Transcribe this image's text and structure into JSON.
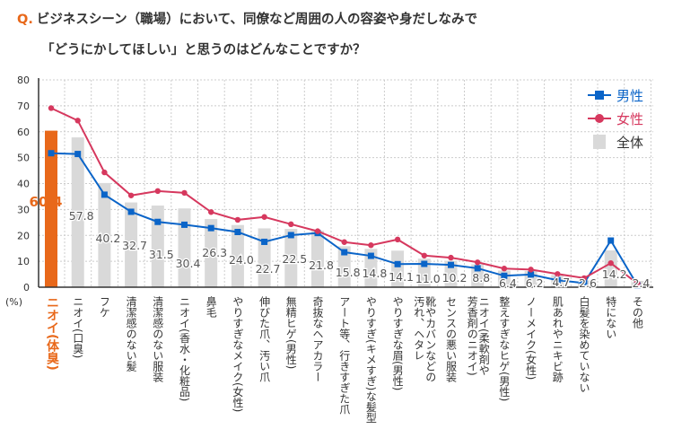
{
  "title": {
    "q_mark": "Q.",
    "line1": "ビジネスシーン（職場）において、同僚など周囲の人の容姿や身だしなみで",
    "line2": "「どうにかしてほしい」と思うのはどんなことですか？"
  },
  "chart_data": {
    "type": "bar",
    "unit_label": "(%)",
    "ylim": [
      0,
      80
    ],
    "yticks": [
      "0",
      "10",
      "20",
      "30",
      "40",
      "50",
      "60",
      "70",
      "80"
    ],
    "grid": true,
    "legend_position": "top-right",
    "categories": [
      "ニオイ(体臭)",
      "ニオイ(口臭)",
      "フケ",
      "清潔感のない髪",
      "清潔感のない服装",
      "ニオイ(香水・化粧品)",
      "鼻毛",
      "やりすぎなメイク(女性)",
      "伸びた爪、汚い爪",
      "無精ヒゲ(男性)",
      "奇抜なヘアカラー",
      "アート等、行きすぎた爪",
      "やりすぎ(キメすぎ)な髪型",
      "やりすぎな眉(男性)",
      "靴やカバンなどの\n汚れ、ヘタレ",
      "センスの悪い服装",
      "ニオイ(柔軟剤や\n芳香剤のニオイ)",
      "整えすぎなヒゲ(男性)",
      "ノーメイク(女性)",
      "肌あれやニキビ跡",
      "白髪を染めていない",
      "特にない",
      "その他"
    ],
    "highlight_index": 0,
    "series": [
      {
        "name": "全体",
        "type": "bar",
        "color": "#d9d9d9",
        "highlight_color": "#e8681a",
        "values": [
          60.4,
          57.8,
          40.2,
          32.7,
          31.5,
          30.4,
          26.3,
          24.0,
          22.7,
          22.5,
          21.8,
          15.8,
          14.8,
          14.1,
          11.0,
          10.2,
          8.8,
          6.4,
          6.2,
          4.7,
          2.6,
          14.2,
          2.4
        ]
      },
      {
        "name": "男性",
        "type": "line",
        "marker": "square",
        "color": "#0a64c8",
        "values": [
          51.7,
          51.4,
          35.7,
          29.1,
          25.2,
          24.1,
          22.8,
          21.3,
          17.5,
          20.1,
          20.9,
          13.5,
          12.1,
          8.9,
          9.0,
          8.6,
          7.3,
          4.4,
          4.9,
          2.7,
          1.6,
          18.0,
          0.7
        ]
      },
      {
        "name": "女性",
        "type": "line",
        "marker": "circle",
        "color": "#d6385e",
        "values": [
          69.1,
          64.3,
          44.3,
          35.4,
          37.1,
          36.4,
          29.0,
          26.0,
          27.1,
          24.3,
          21.6,
          17.4,
          16.2,
          18.4,
          12.2,
          11.4,
          9.6,
          7.2,
          6.8,
          5.1,
          3.5,
          9.3,
          1.4
        ]
      }
    ]
  }
}
